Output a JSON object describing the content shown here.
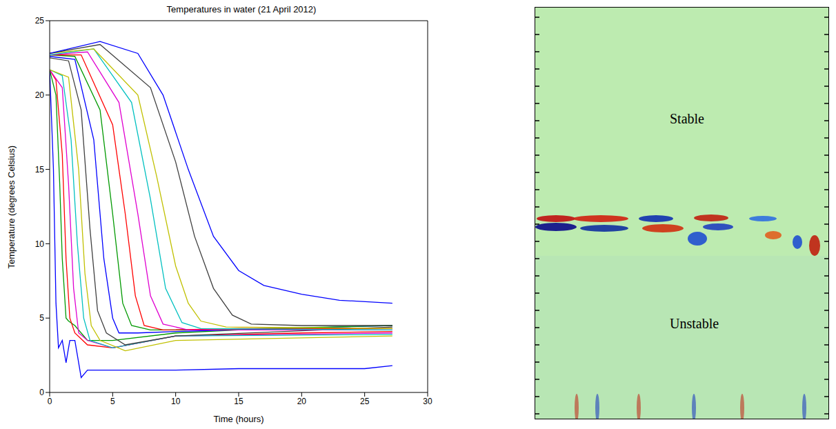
{
  "chart_data": {
    "type": "line",
    "title": "Temperatures in water (21 April 2012)",
    "x_label": "Time (hours)",
    "y_label": "Temperature (degrees Celsius)",
    "xlim": [
      0,
      30
    ],
    "xticks": [
      0,
      5,
      10,
      15,
      20,
      25,
      30
    ],
    "ylim": [
      0,
      25
    ],
    "yticks": [
      0,
      5,
      10,
      15,
      20,
      25
    ],
    "grid": false,
    "series": [
      {
        "color": "#0000ff",
        "x": [
          0,
          0.3,
          0.5,
          0.7,
          1,
          1.3,
          1.6,
          2,
          2.5,
          3,
          5,
          10,
          15,
          20,
          25,
          27.2
        ],
        "values": [
          21.7,
          15,
          6,
          3,
          3.5,
          2,
          3.5,
          3.5,
          1,
          1.5,
          1.5,
          1.5,
          1.6,
          1.6,
          1.6,
          1.8
        ]
      },
      {
        "color": "#009900",
        "x": [
          0,
          0.5,
          0.8,
          1,
          1.3,
          1.5,
          2,
          3,
          5,
          10,
          15,
          20,
          27.2
        ],
        "values": [
          21.7,
          20,
          14,
          9,
          5,
          4.8,
          4.5,
          3.5,
          3.5,
          4,
          4.2,
          4.3,
          4.3
        ]
      },
      {
        "color": "#ff0000",
        "x": [
          0,
          0.5,
          1,
          1.3,
          1.6,
          2,
          3,
          5,
          10,
          20,
          27.2
        ],
        "values": [
          21.7,
          21,
          16,
          9,
          5,
          4,
          3.2,
          3,
          3.8,
          4,
          4.1
        ]
      },
      {
        "color": "#e000d0",
        "x": [
          0,
          1,
          1.5,
          1.9,
          2.3,
          3,
          5,
          10,
          27.2
        ],
        "values": [
          21.7,
          20.5,
          14,
          7,
          4,
          3.5,
          3,
          3.8,
          4
        ]
      },
      {
        "color": "#00c0c0",
        "x": [
          0,
          1,
          1.7,
          2.2,
          2.7,
          3.2,
          5,
          10,
          27.2
        ],
        "values": [
          21.7,
          21.3,
          17,
          10,
          5,
          3.5,
          3,
          3.8,
          3.9
        ]
      },
      {
        "color": "#c0c000",
        "x": [
          0,
          1.5,
          2.3,
          2.8,
          3.3,
          4,
          6,
          10,
          27.2
        ],
        "values": [
          21.7,
          21.2,
          15,
          8,
          4.5,
          3.5,
          2.8,
          3.5,
          3.8
        ]
      },
      {
        "color": "#404040",
        "x": [
          0,
          1.5,
          2.5,
          3.2,
          3.8,
          4.5,
          6,
          10,
          27.2
        ],
        "values": [
          22.5,
          22.3,
          19,
          11,
          5.5,
          4,
          3.2,
          3.8,
          4.4
        ]
      },
      {
        "color": "#0000ff",
        "x": [
          0,
          2,
          3.5,
          4.3,
          5,
          5.5,
          7,
          10,
          27.2
        ],
        "values": [
          22.6,
          22.4,
          17,
          9,
          5,
          4,
          4,
          4.1,
          4.5
        ]
      },
      {
        "color": "#009900",
        "x": [
          0,
          2,
          4,
          5,
          5.8,
          6.5,
          8,
          12,
          27.2
        ],
        "values": [
          22.7,
          22.6,
          19,
          12,
          6,
          4.5,
          4.2,
          4.2,
          4.5
        ]
      },
      {
        "color": "#ff0000",
        "x": [
          0,
          2.5,
          5,
          6,
          6.8,
          7.5,
          9,
          15,
          27.2
        ],
        "values": [
          22.7,
          22.7,
          18,
          12,
          6.5,
          4.5,
          4.2,
          4.3,
          4.3
        ]
      },
      {
        "color": "#e000d0",
        "x": [
          0,
          3,
          5.5,
          7,
          8,
          9,
          11,
          27.2
        ],
        "values": [
          22.7,
          22.9,
          19.5,
          12,
          6.5,
          4.6,
          4.2,
          4.2
        ]
      },
      {
        "color": "#00c0c0",
        "x": [
          0,
          3.5,
          6.5,
          8,
          9.2,
          10.5,
          12,
          27.2
        ],
        "values": [
          22.7,
          23.1,
          19.5,
          13,
          7,
          4.7,
          4.3,
          4.2
        ]
      },
      {
        "color": "#c0c000",
        "x": [
          0,
          3.5,
          7,
          8.5,
          10,
          11,
          12,
          14,
          27.2
        ],
        "values": [
          22.8,
          23.1,
          20,
          14.5,
          8.5,
          6,
          4.8,
          4.4,
          4.3
        ]
      },
      {
        "color": "#404040",
        "x": [
          0,
          4,
          8,
          10,
          11.5,
          13,
          14.5,
          16,
          20,
          27.2
        ],
        "values": [
          22.8,
          23.4,
          20.5,
          15.5,
          10.5,
          7,
          5.2,
          4.6,
          4.5,
          4.5
        ]
      },
      {
        "color": "#0000ff",
        "x": [
          0,
          4,
          7,
          9,
          11,
          13,
          15,
          17,
          20,
          23,
          27.2
        ],
        "values": [
          22.8,
          23.6,
          22.8,
          20,
          15,
          10.5,
          8.2,
          7.2,
          6.6,
          6.2,
          6
        ]
      }
    ]
  },
  "image_panel": {
    "labels": [
      "Stable",
      "Unstable"
    ]
  }
}
